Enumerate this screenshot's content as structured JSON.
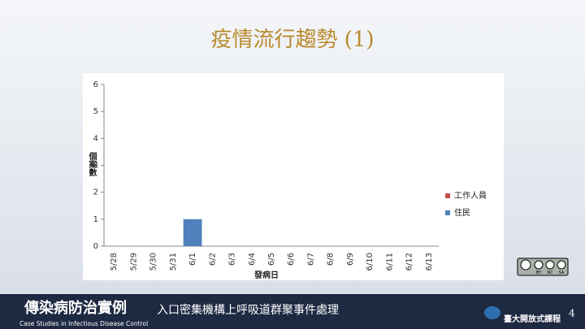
{
  "slide": {
    "title": "疫情流行趨勢 (1)"
  },
  "chart_data": {
    "type": "bar",
    "stacked": true,
    "y_label": "個案數",
    "x_label": "發病日",
    "categories": [
      "5/28",
      "5/29",
      "5/30",
      "5/31",
      "6/1",
      "6/2",
      "6/3",
      "6/4",
      "6/5",
      "6/6",
      "6/7",
      "6/8",
      "6/9",
      "6/10",
      "6/11",
      "6/12",
      "6/13"
    ],
    "series": [
      {
        "name": "住民",
        "color": "#4f81bd",
        "values": [
          0,
          0,
          0,
          0,
          1,
          0,
          0,
          0,
          0,
          0,
          0,
          0,
          0,
          0,
          0,
          0,
          0
        ]
      },
      {
        "name": "工作人員",
        "color": "#c0504d",
        "values": [
          0,
          0,
          0,
          0,
          0,
          0,
          0,
          0,
          0,
          0,
          0,
          0,
          0,
          0,
          0,
          0,
          0
        ]
      }
    ],
    "ylim": [
      0,
      6
    ],
    "yticks": [
      0,
      1,
      2,
      3,
      4,
      5,
      6
    ],
    "grid": false,
    "legend": "right"
  },
  "license": [
    "BY",
    "NC",
    "SA"
  ],
  "footer": {
    "course_zh": "傳染病防治實例",
    "topic": "入口密集機構上呼吸道群聚事件處理",
    "course_en": "Case Studies in Infectious Disease Control",
    "logo_text": "臺大開放式課程",
    "page_number": "4"
  }
}
